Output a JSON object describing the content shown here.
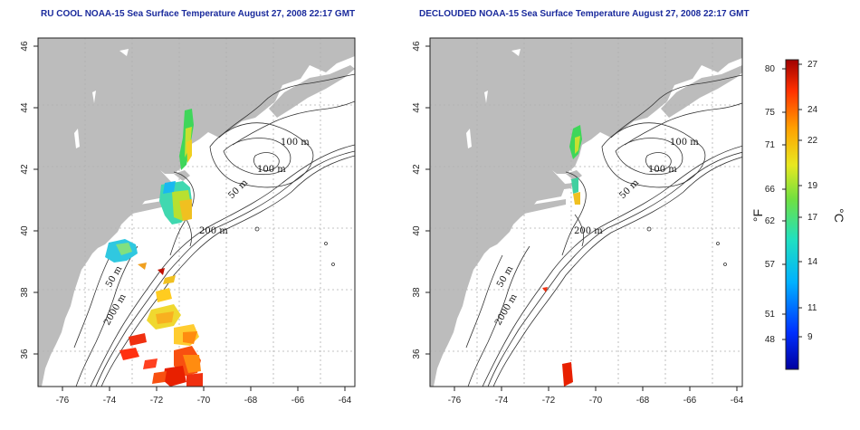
{
  "panels": [
    {
      "title": "RU COOL NOAA-15 Sea Surface Temperature August 27, 2008 22:17 GMT",
      "contour_labels": [
        "100 m",
        "100 m",
        "50 m",
        "200 m",
        "50 m",
        "2000 m"
      ]
    },
    {
      "title": "DECLOUDED NOAA-15 Sea Surface Temperature August 27, 2008 22:17 GMT",
      "contour_labels": [
        "100 m",
        "100 m",
        "50 m",
        "200 m",
        "50 m",
        "2000 m"
      ]
    }
  ],
  "axes": {
    "x_ticks": [
      "-76",
      "-74",
      "-72",
      "-70",
      "-68",
      "-66",
      "-64"
    ],
    "y_ticks": [
      "36",
      "38",
      "40",
      "42",
      "44",
      "46"
    ]
  },
  "colorbar": {
    "fahrenheit_ticks": [
      "80",
      "75",
      "71",
      "66",
      "62",
      "57",
      "51",
      "48"
    ],
    "celsius_ticks": [
      "27",
      "24",
      "22",
      "19",
      "17",
      "14",
      "11",
      "9"
    ],
    "fahrenheit_unit": "°F",
    "celsius_unit": "°C"
  },
  "colors": {
    "land": "#bcbcbc",
    "title": "#1a2a9c",
    "grid": "#b0b0b0",
    "contour": "#333333"
  }
}
